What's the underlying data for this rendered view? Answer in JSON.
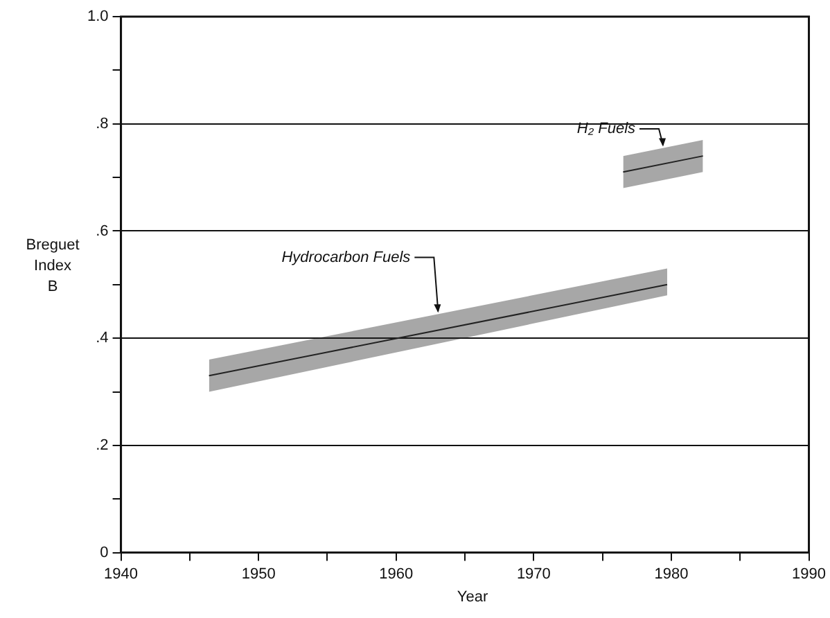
{
  "chart_data": {
    "type": "line",
    "xlabel": "Year",
    "ylabel": "Breguet\nIndex\nB",
    "xlim": [
      1940,
      1990
    ],
    "ylim": [
      0,
      1.0
    ],
    "xticks": [
      1940,
      {
        "value": 1945,
        "label": null
      },
      1950,
      {
        "value": 1955,
        "label": null
      },
      1960,
      {
        "value": 1965,
        "label": null
      },
      1970,
      {
        "value": 1975,
        "label": null
      },
      1980,
      {
        "value": 1985,
        "label": null
      },
      1990
    ],
    "yticks": [
      {
        "value": 0,
        "label": "0"
      },
      {
        "value": 0.1,
        "label": null
      },
      {
        "value": 0.2,
        "label": ".2"
      },
      {
        "value": 0.3,
        "label": null
      },
      {
        "value": 0.4,
        "label": ".4"
      },
      {
        "value": 0.5,
        "label": null
      },
      {
        "value": 0.6,
        "label": ".6"
      },
      {
        "value": 0.7,
        "label": null
      },
      {
        "value": 0.8,
        "label": ".8"
      },
      {
        "value": 0.9,
        "label": null
      },
      {
        "value": 1.0,
        "label": "1.0"
      }
    ],
    "grid": "y",
    "legend": false,
    "series": [
      {
        "name": "Hydrocarbon Fuels",
        "color": "#222222",
        "x": [
          1946.4,
          1979.7
        ],
        "values": [
          0.33,
          0.5
        ],
        "lower": [
          0.3,
          0.48
        ],
        "upper": [
          0.36,
          0.53
        ]
      },
      {
        "name": "H₂ Fuels",
        "color": "#222222",
        "x": [
          1976.5,
          1982.3
        ],
        "values": [
          0.71,
          0.74
        ],
        "lower": [
          0.68,
          0.71
        ],
        "upper": [
          0.74,
          0.77
        ]
      }
    ]
  }
}
